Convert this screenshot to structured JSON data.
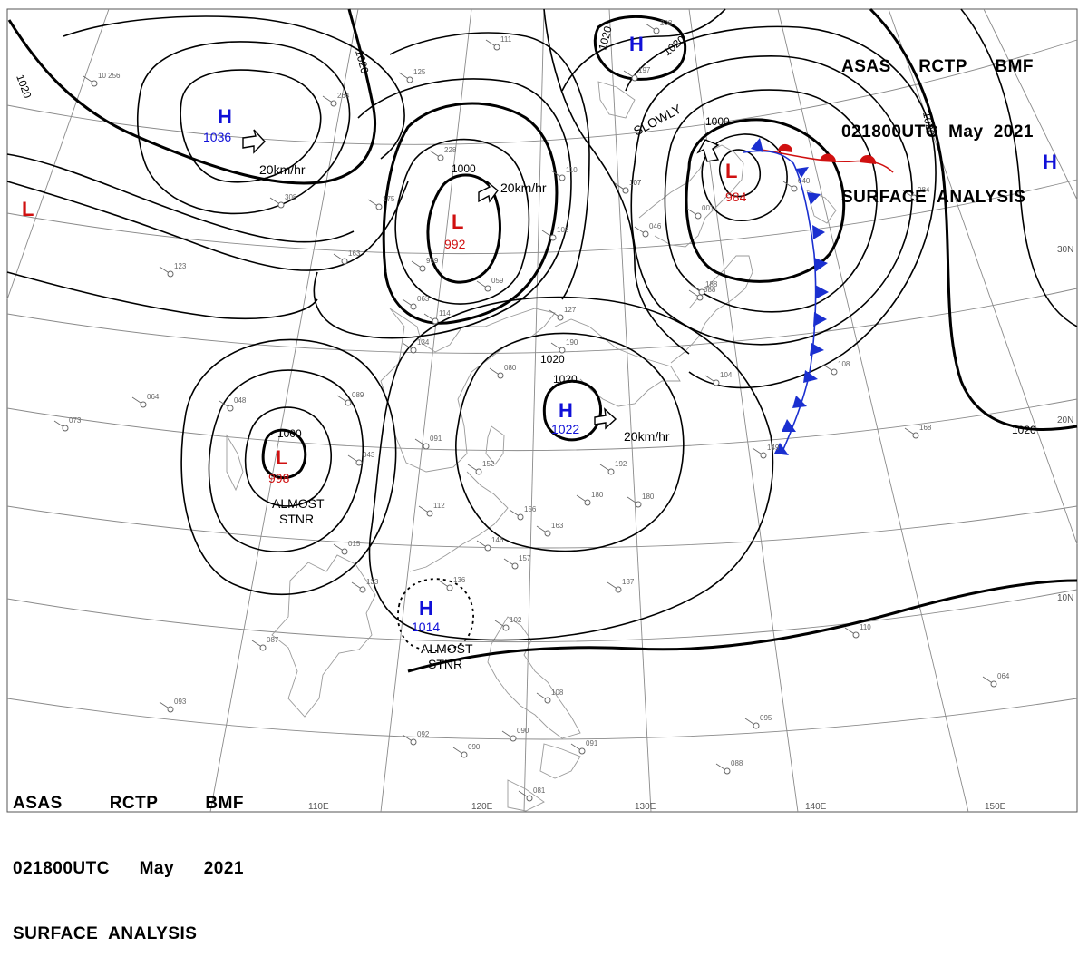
{
  "header": {
    "line1": [
      "ASAS",
      "RCTP",
      "BMF"
    ],
    "line2": [
      "021800UTC",
      "May",
      "2021"
    ],
    "line3": "SURFACE  ANALYSIS"
  },
  "colors": {
    "high": "#1010d8",
    "low": "#d01010",
    "front_cold": "#1a2fd0",
    "front_warm": "#d01010"
  },
  "pressure_centers": [
    {
      "type": "H",
      "value": "1036",
      "color": "high"
    },
    {
      "type": "L",
      "value": "",
      "color": "low"
    },
    {
      "type": "L",
      "value": "992",
      "color": "low"
    },
    {
      "type": "H",
      "value": "",
      "color": "high"
    },
    {
      "type": "L",
      "value": "984",
      "color": "low"
    },
    {
      "type": "H",
      "value": "",
      "color": "high"
    },
    {
      "type": "L",
      "value": "998",
      "color": "low"
    },
    {
      "type": "H",
      "value": "1022",
      "color": "high"
    },
    {
      "type": "H",
      "value": "1014",
      "color": "high"
    }
  ],
  "movements": [
    {
      "text": "20km/hr"
    },
    {
      "text": "20km/hr"
    },
    {
      "text": "SLOWLY"
    },
    {
      "text": "20km/hr"
    },
    {
      "text": "ALMOST\nSTNR"
    },
    {
      "text": "ALMOST\nSTNR"
    }
  ],
  "isobar_labels": [
    "1020",
    "1020",
    "1020",
    "1000",
    "1020",
    "1020",
    "1000",
    "1020",
    "1020",
    "1000",
    "1020"
  ],
  "lat_labels": [
    "30N",
    "20N",
    "10N"
  ],
  "lon_labels": [
    "110E",
    "120E",
    "130E",
    "140E",
    "150E"
  ],
  "stations": [
    {
      "v": "10 256"
    },
    {
      "v": "125"
    },
    {
      "v": "264"
    },
    {
      "v": "175"
    },
    {
      "v": "308"
    },
    {
      "v": "228"
    },
    {
      "v": "163"
    },
    {
      "v": "111"
    },
    {
      "v": "107"
    },
    {
      "v": "046"
    },
    {
      "v": "059"
    },
    {
      "v": "134"
    },
    {
      "v": "114"
    },
    {
      "v": "089"
    },
    {
      "v": "048"
    },
    {
      "v": "073"
    },
    {
      "v": "064"
    },
    {
      "v": "043"
    },
    {
      "v": "091"
    },
    {
      "v": "152"
    },
    {
      "v": "112"
    },
    {
      "v": "156"
    },
    {
      "v": "163"
    },
    {
      "v": "146"
    },
    {
      "v": "157"
    },
    {
      "v": "180"
    },
    {
      "v": "192"
    },
    {
      "v": "180"
    },
    {
      "v": "190"
    },
    {
      "v": "110"
    },
    {
      "v": "108"
    },
    {
      "v": "127"
    },
    {
      "v": "080"
    },
    {
      "v": "088"
    },
    {
      "v": "104"
    },
    {
      "v": "149"
    },
    {
      "v": "108"
    },
    {
      "v": "168"
    },
    {
      "v": "137"
    },
    {
      "v": "136"
    },
    {
      "v": "133"
    },
    {
      "v": "087"
    },
    {
      "v": "093"
    },
    {
      "v": "092"
    },
    {
      "v": "090"
    },
    {
      "v": "090"
    },
    {
      "v": "091"
    },
    {
      "v": "081"
    },
    {
      "v": "102"
    },
    {
      "v": "108"
    },
    {
      "v": "095"
    },
    {
      "v": "088"
    },
    {
      "v": "110"
    },
    {
      "v": "064"
    },
    {
      "v": "040"
    },
    {
      "v": "001"
    },
    {
      "v": "063"
    },
    {
      "v": "969"
    },
    {
      "v": "015"
    },
    {
      "v": "208"
    },
    {
      "v": "197"
    },
    {
      "v": "123"
    },
    {
      "v": "107"
    },
    {
      "v": "084"
    },
    {
      "v": "188"
    }
  ]
}
